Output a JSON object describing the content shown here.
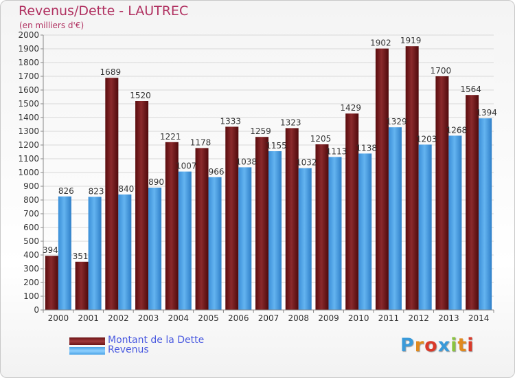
{
  "header": {
    "title": "Revenus/Dette - LAUTREC",
    "subtitle": "(en milliers d'€)"
  },
  "legend": {
    "items": [
      {
        "label": "Montant de la Dette",
        "color": "#6b1416"
      },
      {
        "label": "Revenus",
        "color": "#4aa3e6"
      }
    ]
  },
  "logo": {
    "text": "Proxiti",
    "colors": [
      "#3a9ad9",
      "#e08a1e",
      "#d93a2a",
      "#3a9ad9",
      "#8ac43f",
      "#e08a1e",
      "#d93a2a"
    ]
  },
  "chart_data": {
    "type": "bar",
    "title": "Revenus/Dette - LAUTREC",
    "subtitle": "(en milliers d'€)",
    "xlabel": "",
    "ylabel": "",
    "ylim": [
      0,
      2000
    ],
    "yticks": [
      0,
      100,
      200,
      300,
      400,
      500,
      600,
      700,
      800,
      900,
      1000,
      1100,
      1200,
      1300,
      1400,
      1500,
      1600,
      1700,
      1800,
      1900,
      2000
    ],
    "grid": true,
    "legend_position": "bottom-left",
    "categories": [
      "2000",
      "2001",
      "2002",
      "2003",
      "2004",
      "2005",
      "2006",
      "2007",
      "2008",
      "2009",
      "2010",
      "2011",
      "2012",
      "2013",
      "2014"
    ],
    "series": [
      {
        "name": "Montant de la Dette",
        "color": "#6b1416",
        "values": [
          394,
          351,
          1689,
          1520,
          1221,
          1178,
          1333,
          1259,
          1323,
          1205,
          1429,
          1902,
          1919,
          1700,
          1564
        ]
      },
      {
        "name": "Revenus",
        "color": "#4aa3e6",
        "values": [
          826,
          823,
          840,
          890,
          1007,
          966,
          1038,
          1155,
          1032,
          1113,
          1138,
          1329,
          1203,
          1268,
          1394
        ]
      }
    ]
  }
}
